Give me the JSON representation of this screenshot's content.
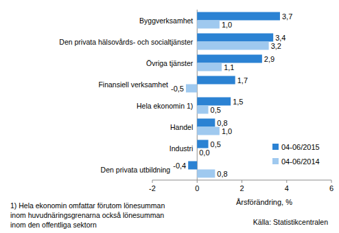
{
  "chart_data": {
    "type": "bar",
    "orientation": "horizontal",
    "categories": [
      "Byggverksamhet",
      "Den privata hälsovårds- och socialtjänster",
      "Övriga tjänster",
      "Finansiell verksamhet",
      "Hela ekonomin 1)",
      "Handel",
      "Industri",
      "Den privata utbildning"
    ],
    "series": [
      {
        "name": "04-06/2015",
        "color": "#2b82d3",
        "values": [
          3.7,
          3.4,
          2.9,
          1.7,
          1.5,
          0.8,
          0.5,
          -0.4
        ],
        "value_labels": [
          "3,7",
          "3,4",
          "2,9",
          "1,7",
          "1,5",
          "0,8",
          "0,5",
          "-0,4"
        ]
      },
      {
        "name": "04-06/2014",
        "color": "#9fc9ef",
        "values": [
          1.0,
          3.2,
          1.1,
          -0.5,
          0.5,
          1.0,
          0.0,
          0.8
        ],
        "value_labels": [
          "1,0",
          "3,2",
          "1,1",
          "-0,5",
          "0,5",
          "1,0",
          "0,0",
          "0,8"
        ]
      }
    ],
    "xlim": [
      -2,
      6
    ],
    "xticks": [
      -2,
      0,
      2,
      4,
      6
    ],
    "xlabel": "Årsförändring, %",
    "grid": false,
    "legend": "lower right",
    "data_labels": true,
    "annotations": [
      "1) Hela ekonomin omfattar förutom lönesumman",
      "inom huvudnäringsgrenarna också lönesumman",
      "inom den offentliga sektorn",
      "Källa: Statistikcentralen"
    ]
  }
}
